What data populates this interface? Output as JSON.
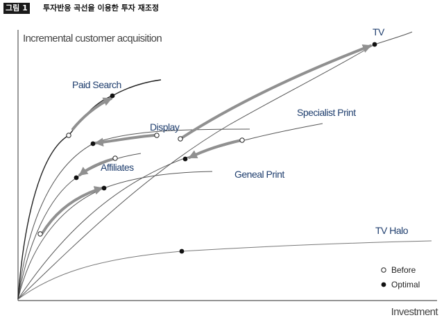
{
  "figure": {
    "tag": "그림 1",
    "title": "투자반응 곡선을 이용한 투자 재조정"
  },
  "axes": {
    "y_label": "Incremental customer acquisition",
    "x_label": "Investment"
  },
  "curves": [
    {
      "key": "paid_search",
      "label": "Paid Search"
    },
    {
      "key": "display",
      "label": "Display"
    },
    {
      "key": "affiliates",
      "label": "Affiliates"
    },
    {
      "key": "specialist_print",
      "label": "Specialist Print"
    },
    {
      "key": "general_print",
      "label": "Geneal Print"
    },
    {
      "key": "tv",
      "label": "TV"
    },
    {
      "key": "tv_halo",
      "label": "TV Halo"
    }
  ],
  "legend": {
    "before": "Before",
    "optimal": "Optimal"
  },
  "colors": {
    "curve": "#666666",
    "arrow": "#909090",
    "label": "#1f3e6e",
    "axis": "#444444"
  }
}
